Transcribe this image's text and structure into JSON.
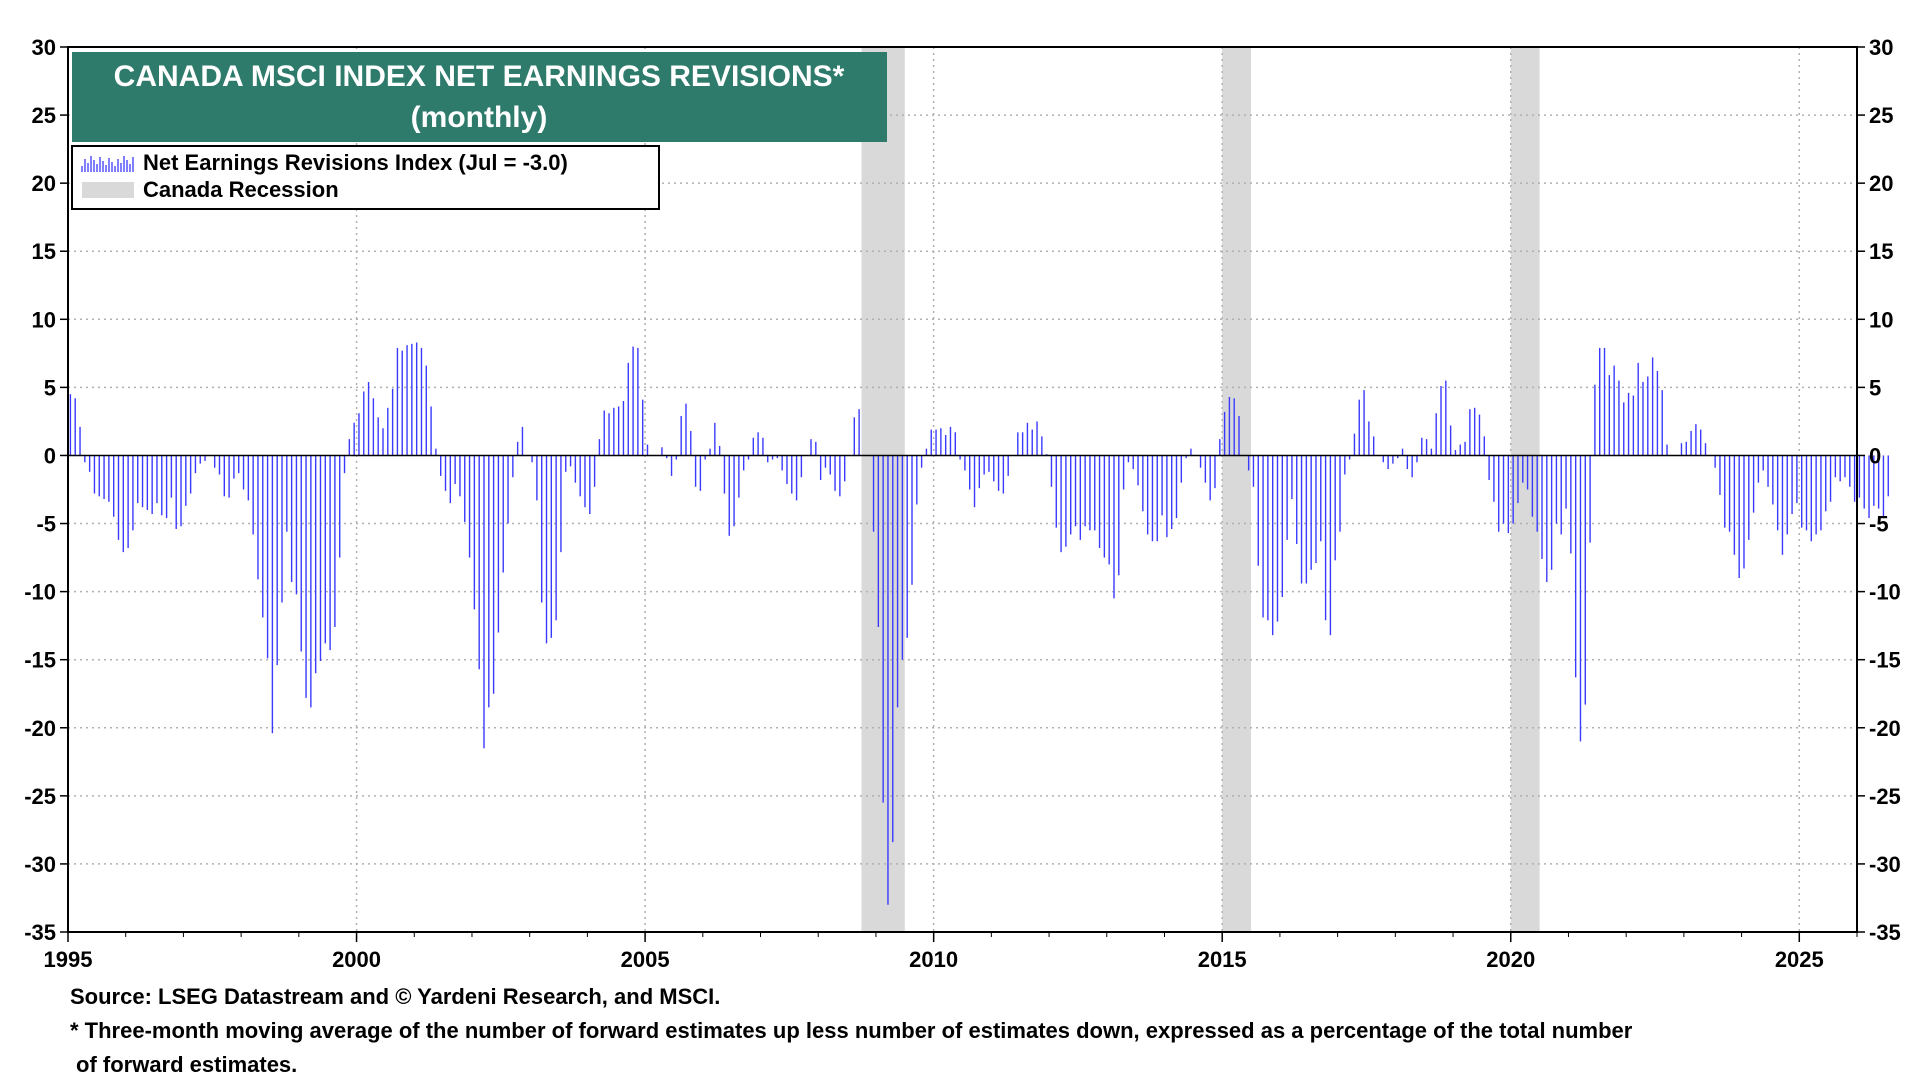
{
  "chart_data": {
    "type": "bar",
    "title": "CANADA MSCI INDEX NET EARNINGS REVISIONS*",
    "subtitle": "(monthly)",
    "frequency": "monthly",
    "start": "1995-01",
    "x_range": [
      1995,
      2026
    ],
    "x_ticks": [
      "1995",
      "2000",
      "2005",
      "2010",
      "2015",
      "2020",
      "2025"
    ],
    "ylim": [
      -35,
      30
    ],
    "y_ticks": [
      "30",
      "25",
      "20",
      "15",
      "10",
      "5",
      "0",
      "-5",
      "-10",
      "-15",
      "-20",
      "-25",
      "-30",
      "-35"
    ],
    "xlabel": "",
    "ylabel": "",
    "grid": true,
    "legend_position": "top-left",
    "series": [
      {
        "name": "Net Earnings Revisions Index (Jul  = -3.0)",
        "color": "#3a3aff",
        "values": [
          4.5,
          4.2,
          2.1,
          -0.5,
          -1.2,
          -2.8,
          -3.0,
          -3.2,
          -3.4,
          -4.5,
          -6.2,
          -7.1,
          -6.8,
          -5.5,
          -3.5,
          -3.8,
          -4.0,
          -4.3,
          -3.5,
          -4.4,
          -4.6,
          -3.1,
          -5.4,
          -5.2,
          -3.7,
          -2.8,
          -1.3,
          -0.6,
          -0.4,
          0.0,
          -0.9,
          -1.4,
          -3.0,
          -3.1,
          -1.7,
          -1.3,
          -2.5,
          -3.3,
          -5.8,
          -9.1,
          -11.9,
          -14.9,
          -20.4,
          -15.4,
          -10.8,
          -5.6,
          -9.3,
          -10.2,
          -14.4,
          -17.8,
          -18.5,
          -16.0,
          -15.1,
          -13.8,
          -14.3,
          -12.6,
          -7.5,
          -1.3,
          1.2,
          2.4,
          3.1,
          4.7,
          5.4,
          4.2,
          2.8,
          2.0,
          3.5,
          4.9,
          7.9,
          7.7,
          8.1,
          8.2,
          8.3,
          7.9,
          6.6,
          3.6,
          0.5,
          -1.5,
          -2.6,
          -3.5,
          -2.1,
          -3.0,
          -4.9,
          -7.5,
          -11.3,
          -15.7,
          -21.5,
          -18.5,
          -17.5,
          -13.0,
          -8.6,
          -5.0,
          -1.6,
          1.0,
          2.1,
          0.0,
          -0.5,
          -3.3,
          -10.8,
          -13.8,
          -13.4,
          -12.1,
          -7.1,
          -1.2,
          -0.8,
          -2.0,
          -3.0,
          -3.8,
          -4.3,
          -2.3,
          1.2,
          3.3,
          3.1,
          3.5,
          3.6,
          4.0,
          6.8,
          8.0,
          7.9,
          4.1,
          0.8,
          0.0,
          0.0,
          0.6,
          -0.2,
          -1.5,
          -0.3,
          2.9,
          3.8,
          1.8,
          -2.3,
          -2.6,
          -0.3,
          0.5,
          2.4,
          0.7,
          -2.8,
          -5.9,
          -5.2,
          -3.1,
          -1.1,
          -0.3,
          1.3,
          1.7,
          1.3,
          -0.5,
          -0.3,
          -0.2,
          -1.1,
          -2.1,
          -2.8,
          -3.3,
          -1.6,
          0.0,
          1.2,
          1.0,
          -1.8,
          -0.9,
          -1.4,
          -2.6,
          -3.0,
          -1.9,
          0.0,
          2.8,
          3.4,
          0.0,
          0.0,
          -5.6,
          -12.6,
          -25.5,
          -33.0,
          -28.4,
          -18.5,
          -15.0,
          -13.4,
          -9.5,
          -3.6,
          -0.9,
          0.5,
          1.9,
          1.9,
          2.0,
          1.5,
          2.1,
          1.7,
          -0.3,
          -1.1,
          -2.5,
          -3.8,
          -2.4,
          -1.4,
          -1.2,
          -1.9,
          -2.6,
          -2.8,
          -1.5,
          0.0,
          1.7,
          1.7,
          2.4,
          1.9,
          2.5,
          1.4,
          0.1,
          -2.3,
          -5.3,
          -7.1,
          -6.7,
          -5.8,
          -5.2,
          -6.2,
          -5.2,
          -5.5,
          -5.5,
          -6.8,
          -7.5,
          -8.0,
          -10.5,
          -8.8,
          -2.5,
          -0.5,
          -1.0,
          -2.2,
          -4.1,
          -5.8,
          -6.3,
          -6.3,
          -4.4,
          -6.0,
          -5.4,
          -4.6,
          -2.0,
          -0.2,
          0.5,
          0.0,
          -0.9,
          -2.0,
          -3.3,
          -2.4,
          1.2,
          3.2,
          4.3,
          4.2,
          2.9,
          0.0,
          -1.1,
          -2.3,
          -8.1,
          -11.9,
          -12.1,
          -13.2,
          -12.2,
          -10.4,
          -6.2,
          -3.2,
          -6.5,
          -9.4,
          -9.4,
          -8.4,
          -7.9,
          -6.3,
          -12.1,
          -13.2,
          -7.7,
          -5.6,
          -1.4,
          -0.3,
          1.6,
          4.1,
          4.8,
          2.5,
          1.4,
          0.0,
          -0.5,
          -1.0,
          -0.6,
          -0.2,
          0.5,
          -1.0,
          -1.6,
          -0.5,
          1.3,
          1.2,
          0.5,
          3.1,
          5.1,
          5.5,
          2.2,
          0.4,
          0.8,
          1.0,
          3.4,
          3.5,
          3.0,
          1.4,
          -1.8,
          -3.4,
          -5.6,
          -5.0,
          -5.7,
          -5.0,
          -3.5,
          -2.0,
          -2.5,
          -4.5,
          -5.6,
          -7.6,
          -9.3,
          -8.4,
          -5.0,
          -5.8,
          -3.9,
          -7.2,
          -16.3,
          -21.0,
          -18.3,
          -6.4,
          5.2,
          7.9,
          7.9,
          5.9,
          6.6,
          5.5,
          3.9,
          4.6,
          4.4,
          6.8,
          5.4,
          5.8,
          7.2,
          6.2,
          4.8,
          0.8,
          0.0,
          0.0,
          0.9,
          1.0,
          1.8,
          2.3,
          1.9,
          0.9,
          0.0,
          -0.9,
          -2.9,
          -5.3,
          -5.6,
          -7.3,
          -9.0,
          -8.3,
          -6.2,
          -4.2,
          -2.0,
          -1.1,
          -2.3,
          -3.6,
          -5.5,
          -7.3,
          -5.8,
          -4.3,
          -3.5,
          -5.3,
          -5.5,
          -6.3,
          -5.8,
          -5.5,
          -4.1,
          -3.4,
          -1.6,
          -1.9,
          -1.6,
          -2.3,
          -3.4,
          -3.1,
          -3.9,
          -4.6,
          -3.7,
          -3.9,
          -4.6,
          -3.0
        ]
      }
    ],
    "recessions": [
      {
        "name": "Canada Recession",
        "start": 2008.75,
        "end": 2009.5
      },
      {
        "name": "Canada Recession",
        "start": 2015.0,
        "end": 2015.5
      },
      {
        "name": "Canada Recession",
        "start": 2020.0,
        "end": 2020.5
      }
    ],
    "legend": [
      {
        "label": "Net Earnings Revisions Index (Jul  = -3.0)",
        "kind": "bars"
      },
      {
        "label": "Canada Recession",
        "kind": "shade"
      }
    ],
    "colors": {
      "bars": "#3a3aff",
      "recession": "#d9d9d9",
      "title_bg": "#2e7b6c",
      "grid": "#b0b0b0"
    }
  },
  "footer": {
    "source": "Source: LSEG Datastream and © Yardeni Research, and MSCI.",
    "note_line1": "* Three-month moving average of the number of forward estimates up less number of estimates down, expressed as a percentage of the total number",
    "note_line2": "of forward estimates."
  }
}
